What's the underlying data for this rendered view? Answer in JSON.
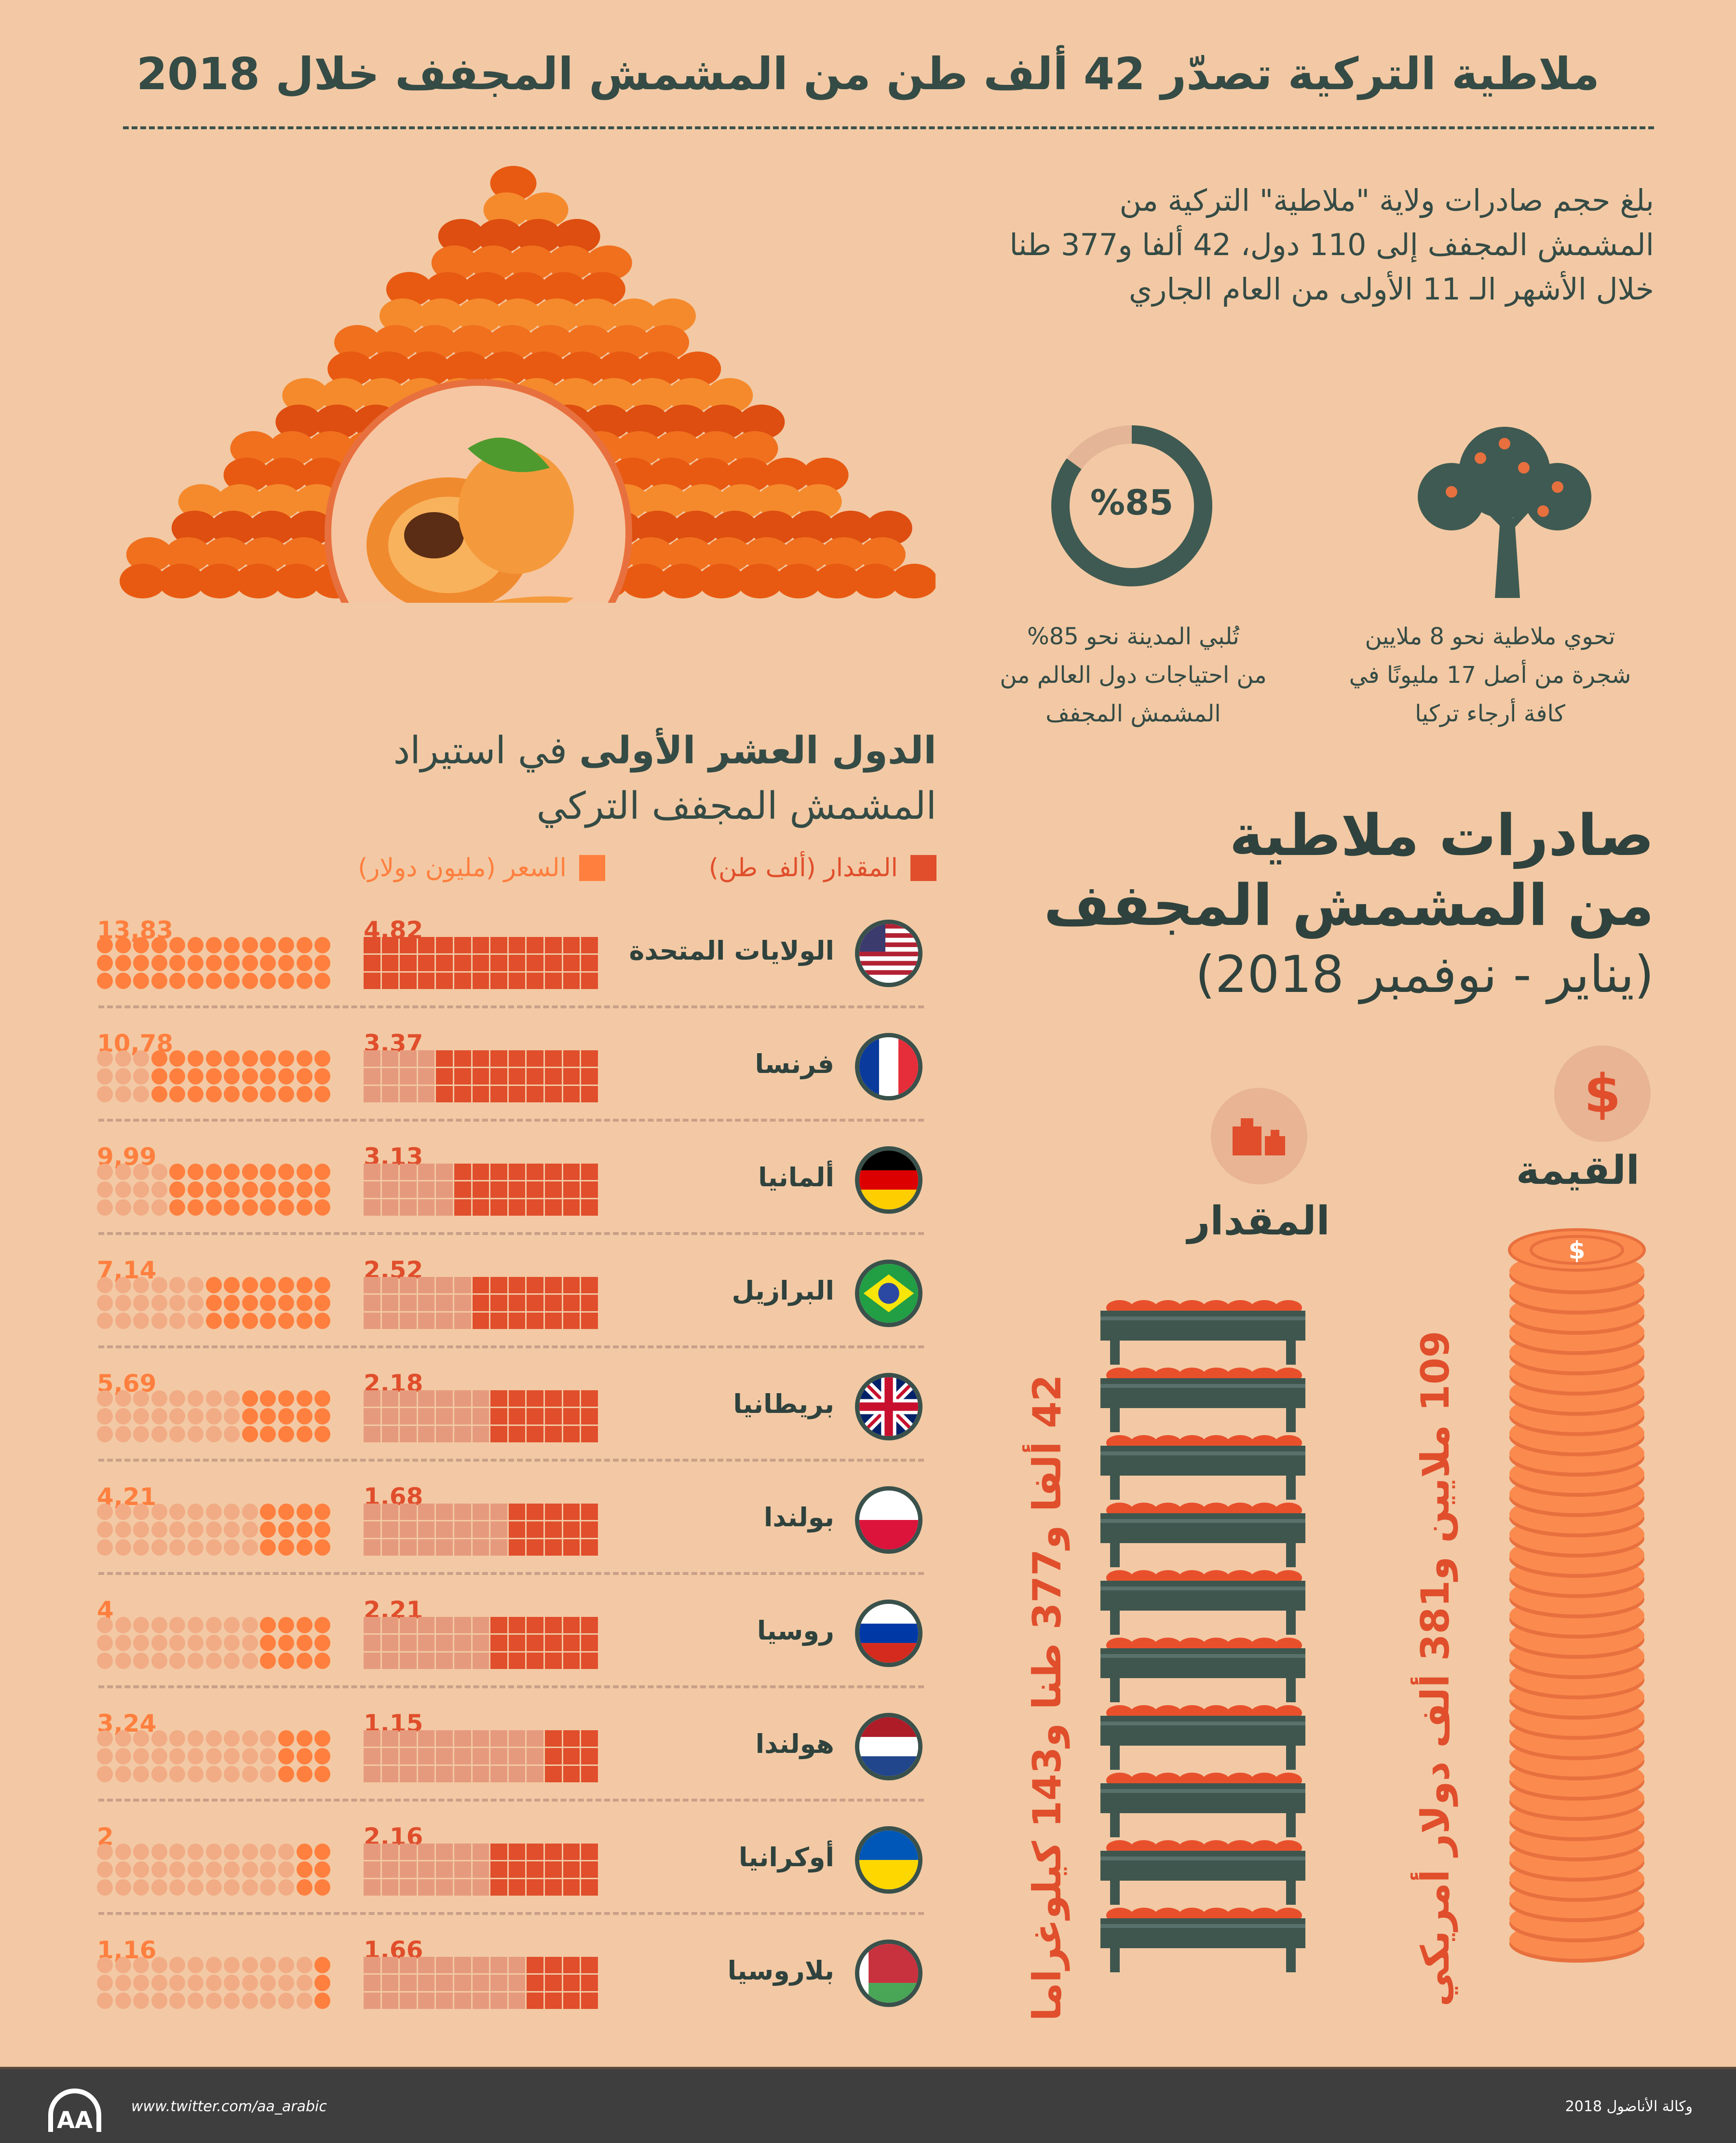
{
  "title": "ملاطية التركية تصدّر 42 ألف طن من المشمش المجفف خلال 2018",
  "intro": [
    "بلغ حجم صادرات ولاية \"ملاطية\" التركية من",
    "المشمش المجفف إلى 110 دول، 42 ألفا و377 طنا",
    "خلال الأشهر الـ 11 الأولى من العام الجاري"
  ],
  "stats": {
    "percent": "%85",
    "percent_value": 85,
    "percent_caption": [
      "تُلبي المدينة نحو 85%",
      "من احتياجات دول العالم من",
      "المشمش المجفف"
    ],
    "tree_caption": [
      "تحوي ملاطية نحو 8 ملايين",
      "شجرة من أصل 17 مليونًا في",
      "كافة أرجاء تركيا"
    ]
  },
  "top10": {
    "heading_bold": "الدول العشر الأولى",
    "heading_rest": "في استيراد",
    "heading_line2": "المشمش المجفف التركي",
    "legend_amount": "المقدار (ألف طن)",
    "legend_price": "السعر (مليون دولار)",
    "colors": {
      "amount": "#e04e2c",
      "price": "#ff7f3f",
      "amount_faded": "#e69a7d",
      "price_faded": "#f1ab85"
    },
    "rows": [
      {
        "country": "الولايات المتحدة",
        "flag": "us",
        "amount": "4,82",
        "price": "13,83"
      },
      {
        "country": "فرنسا",
        "flag": "fr",
        "amount": "3,37",
        "price": "10,78"
      },
      {
        "country": "ألمانيا",
        "flag": "de",
        "amount": "3,13",
        "price": "9,99"
      },
      {
        "country": "البرازيل",
        "flag": "br",
        "amount": "2,52",
        "price": "7,14"
      },
      {
        "country": "بريطانيا",
        "flag": "gb",
        "amount": "2,18",
        "price": "5,69"
      },
      {
        "country": "بولندا",
        "flag": "pl",
        "amount": "1,68",
        "price": "4,21"
      },
      {
        "country": "روسيا",
        "flag": "ru",
        "amount": "2,21",
        "price": "4"
      },
      {
        "country": "هولندا",
        "flag": "nl",
        "amount": "1,15",
        "price": "3,24"
      },
      {
        "country": "أوكرانيا",
        "flag": "ua",
        "amount": "2,16",
        "price": "2"
      },
      {
        "country": "بلاروسيا",
        "flag": "by",
        "amount": "1,66",
        "price": "1,16"
      }
    ]
  },
  "exports": {
    "title1": "صادرات ملاطية",
    "title2": "من المشمش المجفف",
    "period": "(يناير - نوفمبر 2018)",
    "value_label": "القيمة",
    "value_icon": "$",
    "value_text": "109 ملايين و381 ألف دولار أمريكي",
    "amount_label": "المقدار",
    "amount_text": "42 ألفا و377 طنا و143 كيلوغراما"
  },
  "footer": {
    "logo": "AA",
    "twitter": "www.twitter.com/aa_arabic",
    "credit": "وكالة الأناضول 2018"
  }
}
